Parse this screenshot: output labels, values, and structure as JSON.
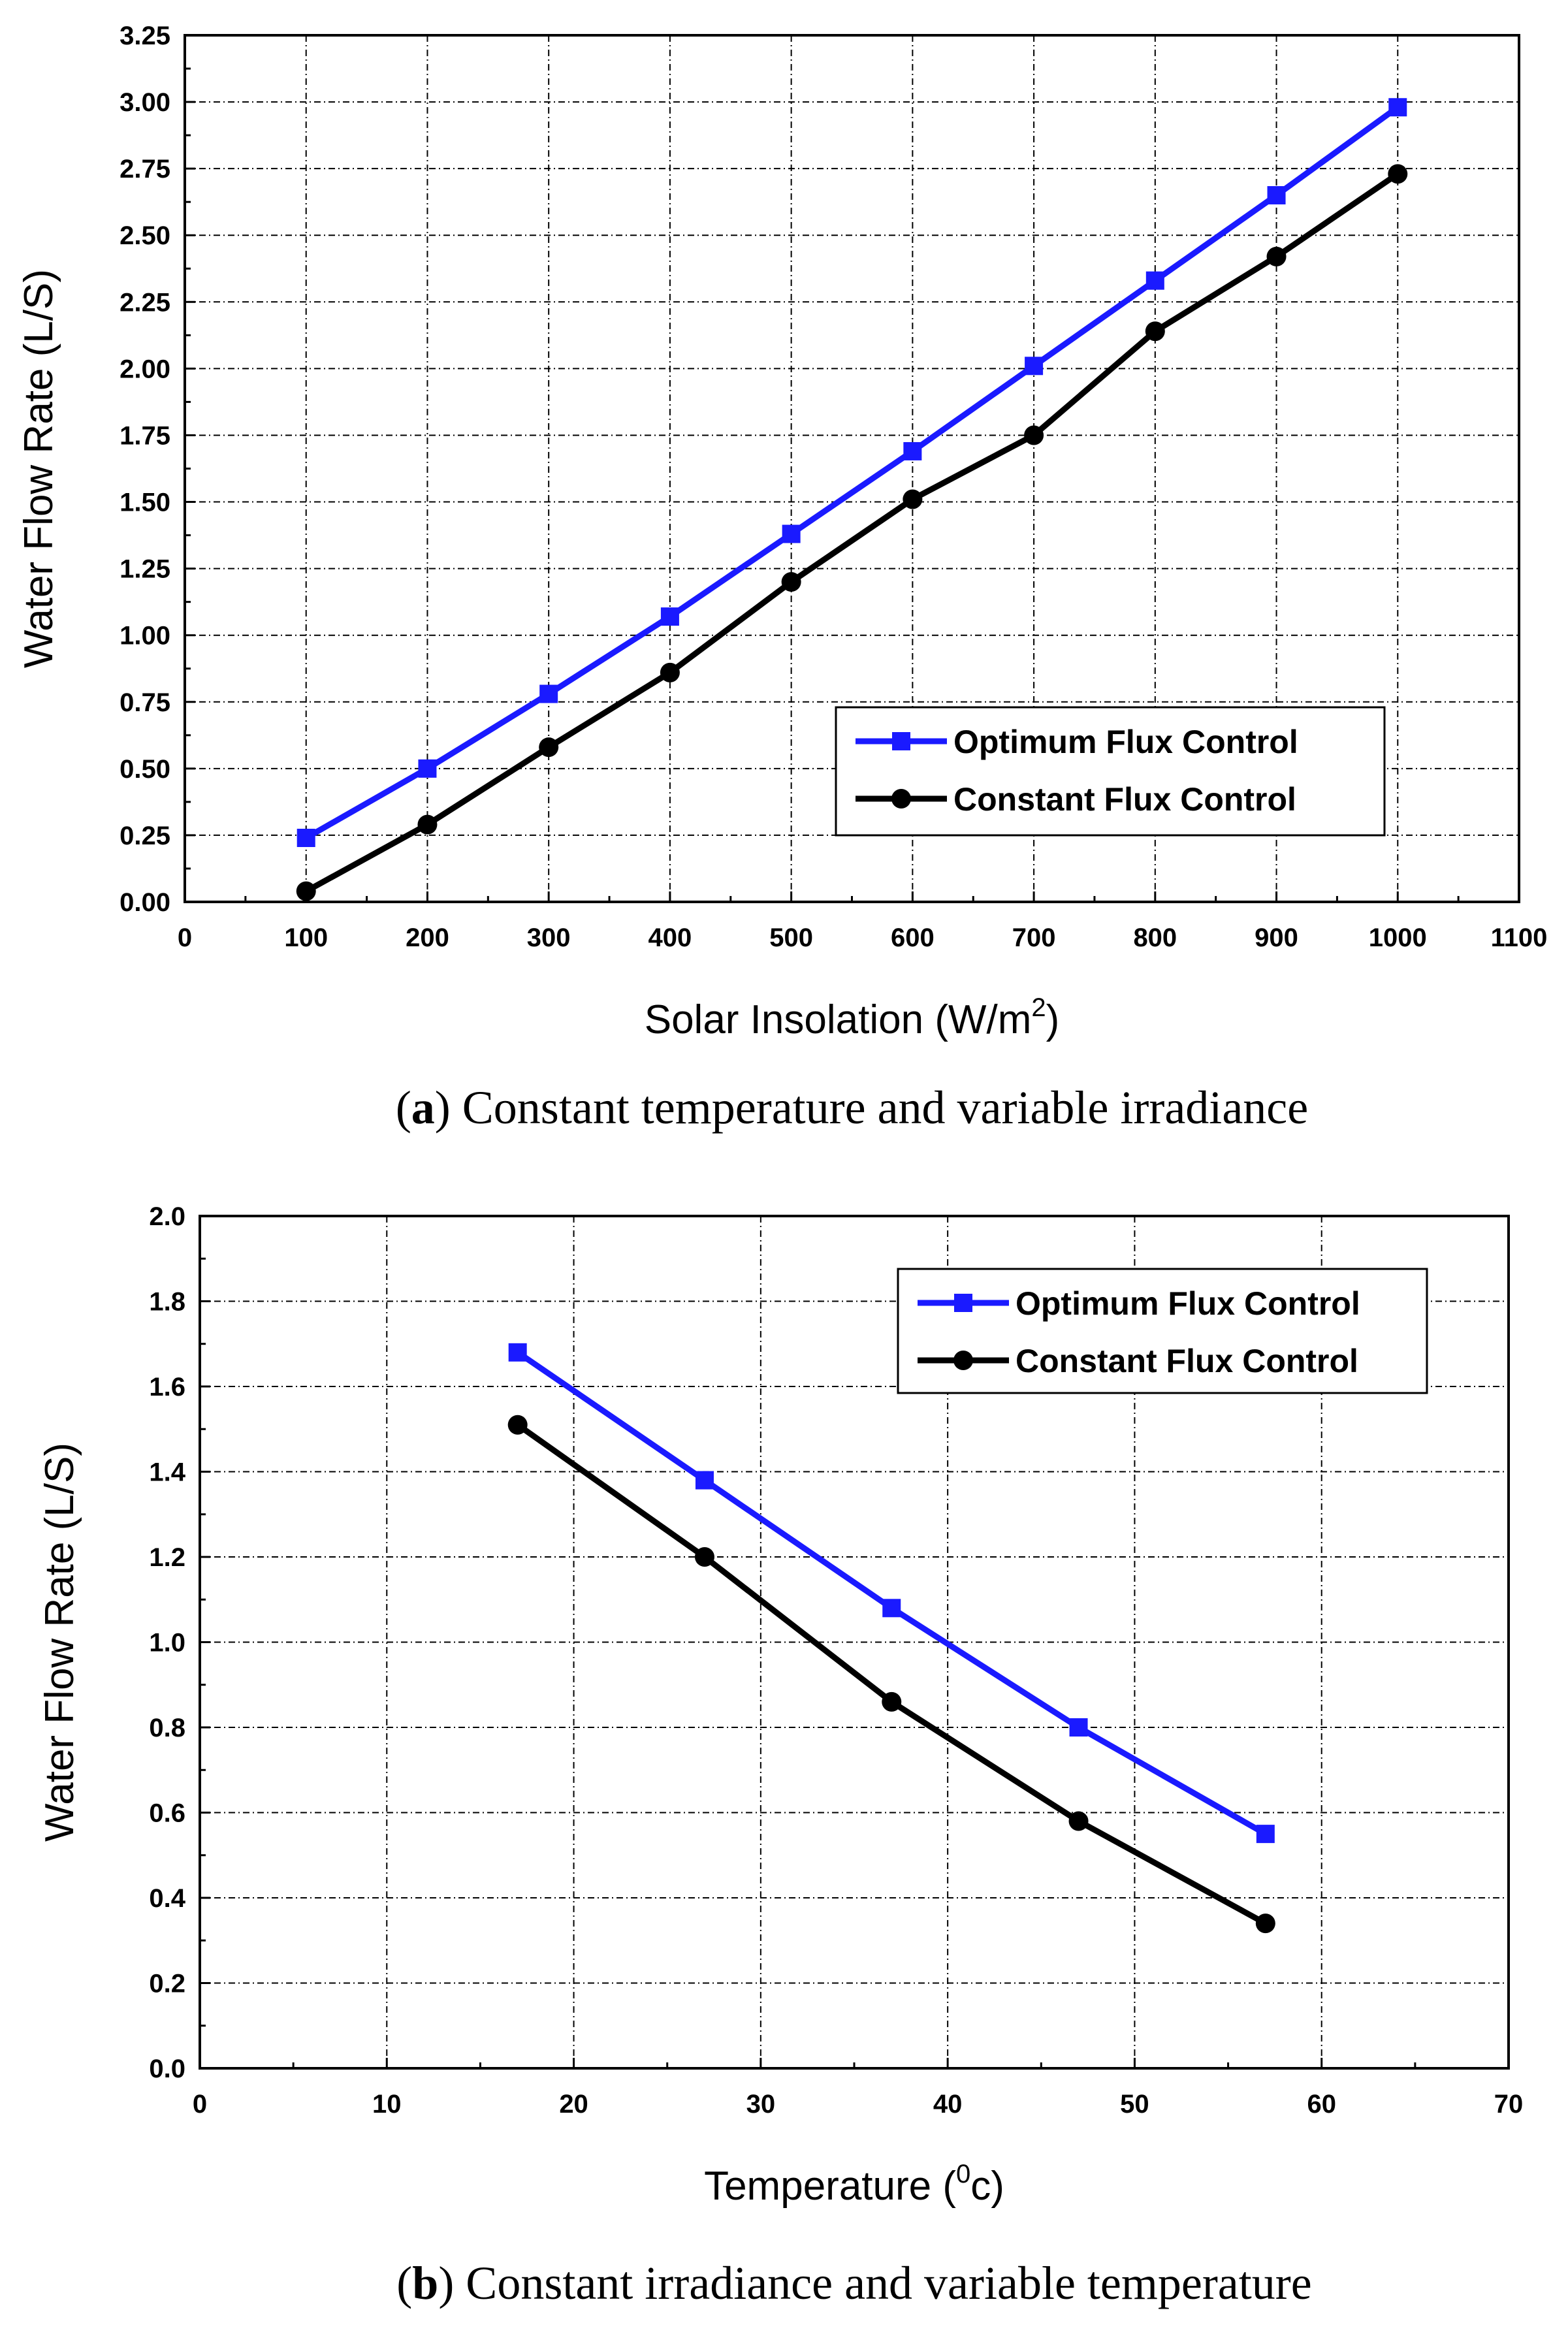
{
  "colors": {
    "optimum": "#1a1aff",
    "constant": "#000000"
  },
  "chart_data": [
    {
      "type": "line",
      "panel": "a",
      "xlabel": "Solar Insolation (W/m",
      "xlabel_sup": "2",
      "xlabel_end": ")",
      "ylabel": "Water Flow Rate (L/S)",
      "xlim": [
        0,
        1100
      ],
      "ylim": [
        0,
        3.25
      ],
      "xticks": [
        "0",
        "100",
        "200",
        "300",
        "400",
        "500",
        "600",
        "700",
        "800",
        "900",
        "1000",
        "1100"
      ],
      "yticks": [
        "0.00",
        "0.25",
        "0.50",
        "0.75",
        "1.00",
        "1.25",
        "1.50",
        "1.75",
        "2.00",
        "2.25",
        "2.50",
        "2.75",
        "3.00",
        "3.25"
      ],
      "grid": true,
      "legend_position": "bottom-right",
      "series": [
        {
          "name": "Optimum Flux Control",
          "marker": "square",
          "x": [
            100,
            200,
            300,
            400,
            500,
            600,
            700,
            800,
            900,
            1000
          ],
          "y": [
            0.24,
            0.5,
            0.78,
            1.07,
            1.38,
            1.69,
            2.01,
            2.33,
            2.65,
            2.98
          ]
        },
        {
          "name": "Constant Flux Control",
          "marker": "circle",
          "x": [
            100,
            200,
            300,
            400,
            500,
            600,
            700,
            800,
            900,
            1000
          ],
          "y": [
            0.04,
            0.29,
            0.58,
            0.86,
            1.2,
            1.51,
            1.75,
            2.14,
            2.42,
            2.73
          ]
        }
      ],
      "caption_letter": "a",
      "caption_text": "Constant temperature and variable irradiance"
    },
    {
      "type": "line",
      "panel": "b",
      "xlabel": "Temperature (",
      "xlabel_sup": "0",
      "xlabel_end": "c)",
      "ylabel": "Water Flow Rate (L/S)",
      "xlim": [
        0,
        70
      ],
      "ylim": [
        0,
        2.0
      ],
      "xticks": [
        "0",
        "10",
        "20",
        "30",
        "40",
        "50",
        "60",
        "70"
      ],
      "yticks": [
        "0.0",
        "0.2",
        "0.4",
        "0.6",
        "0.8",
        "1.0",
        "1.2",
        "1.4",
        "1.6",
        "1.8",
        "2.0"
      ],
      "grid": true,
      "legend_position": "top-right",
      "series": [
        {
          "name": "Optimum Flux Control",
          "marker": "square",
          "x": [
            17,
            27,
            37,
            47,
            57
          ],
          "y": [
            1.68,
            1.38,
            1.08,
            0.8,
            0.55
          ]
        },
        {
          "name": "Constant Flux Control",
          "marker": "circle",
          "x": [
            17,
            27,
            37,
            47,
            57
          ],
          "y": [
            1.51,
            1.2,
            0.86,
            0.58,
            0.34
          ]
        }
      ],
      "caption_letter": "b",
      "caption_text": "Constant irradiance and variable temperature"
    }
  ]
}
